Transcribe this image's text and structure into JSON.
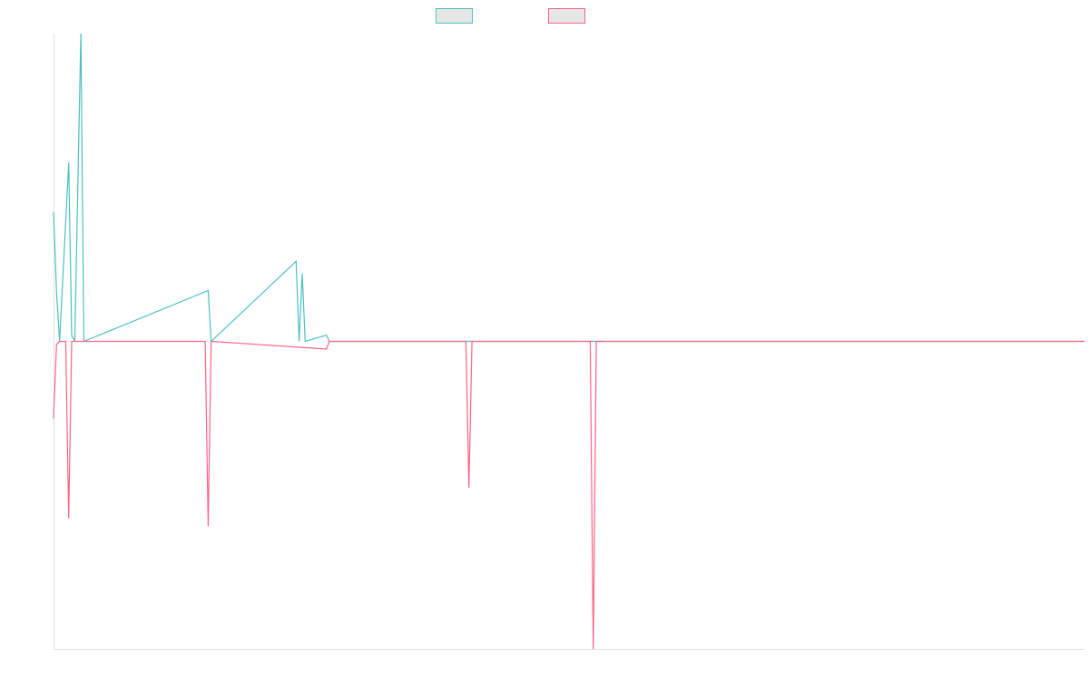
{
  "chart_data": {
    "type": "line",
    "title": "",
    "xlabel": "",
    "ylabel": "",
    "grid": false,
    "legend_position": "top-center",
    "x_count": 341,
    "ylim": [
      -1,
      1
    ],
    "series": [
      {
        "color": "#4bc0c0",
        "fill": "#e6e6e6",
        "values": [
          {
            "x": 0,
            "y": 0.42
          },
          {
            "x": 1,
            "y": 0.16
          },
          {
            "x": 2,
            "y": 0
          },
          {
            "x": 5,
            "y": 0.58
          },
          {
            "x": 6,
            "y": 0.02
          },
          {
            "x": 7,
            "y": 0
          },
          {
            "x": 9,
            "y": 1.0
          },
          {
            "x": 10,
            "y": 0
          },
          {
            "x": 51,
            "y": 0.165
          },
          {
            "x": 52,
            "y": 0
          },
          {
            "x": 80,
            "y": 0.26
          },
          {
            "x": 81,
            "y": 0
          },
          {
            "x": 82,
            "y": 0.22
          },
          {
            "x": 83,
            "y": 0
          },
          {
            "x": 90,
            "y": 0.02
          },
          {
            "x": 91,
            "y": 0
          },
          {
            "x": 92,
            "y": 0
          },
          {
            "x": 340,
            "y": 0
          }
        ]
      },
      {
        "color": "#ff6384",
        "fill": "#e6e6e6",
        "values": [
          {
            "x": 0,
            "y": -0.25
          },
          {
            "x": 1,
            "y": -0.01
          },
          {
            "x": 2,
            "y": 0
          },
          {
            "x": 4,
            "y": 0
          },
          {
            "x": 5,
            "y": -0.575
          },
          {
            "x": 6,
            "y": 0
          },
          {
            "x": 50,
            "y": 0
          },
          {
            "x": 51,
            "y": -0.6
          },
          {
            "x": 52,
            "y": 0
          },
          {
            "x": 90,
            "y": -0.025
          },
          {
            "x": 91,
            "y": 0
          },
          {
            "x": 136,
            "y": 0
          },
          {
            "x": 137,
            "y": -0.475
          },
          {
            "x": 138,
            "y": 0
          },
          {
            "x": 177,
            "y": 0
          },
          {
            "x": 178,
            "y": -1.0
          },
          {
            "x": 179,
            "y": 0
          },
          {
            "x": 340,
            "y": 0
          }
        ]
      }
    ]
  }
}
